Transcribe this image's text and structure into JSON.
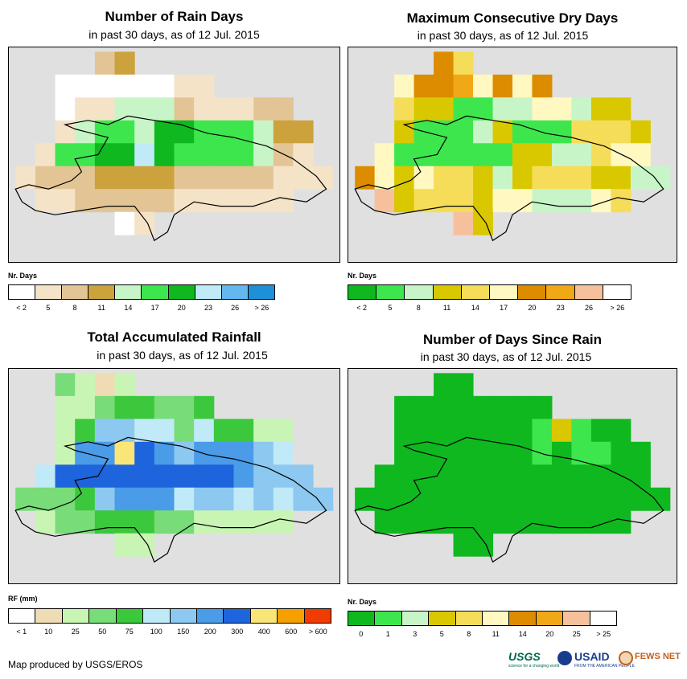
{
  "colors": {
    "map_bg": "#e0e0e0",
    "outline": "#000000"
  },
  "chart_data": [
    {
      "type": "heatmap",
      "title": "Number of Rain Days",
      "subtitle": "in past 30 days, as of 12 Jul. 2015",
      "legend_title": "Nr. Days",
      "legend_colors": [
        "#ffffff",
        "#f5e3c8",
        "#e3c595",
        "#cca23d",
        "#c8f5c8",
        "#3ee64e",
        "#0fb81e",
        "#c0eaf8",
        "#63b8f0",
        "#1e90d8"
      ],
      "legend_ticks": [
        "< 2",
        "5",
        "8",
        "11",
        "14",
        "17",
        "20",
        "23",
        "26",
        "> 26"
      ],
      "grid_cols": 16,
      "grid_rows": 9,
      "cells": [
        [
          null,
          null,
          null,
          null,
          2,
          3,
          null,
          null,
          null,
          null,
          null,
          null,
          null,
          null,
          null,
          null
        ],
        [
          null,
          null,
          0,
          0,
          0,
          0,
          0,
          0,
          1,
          1,
          null,
          null,
          null,
          null,
          null,
          null
        ],
        [
          null,
          null,
          0,
          1,
          1,
          4,
          4,
          4,
          2,
          1,
          1,
          1,
          2,
          2,
          null,
          null
        ],
        [
          null,
          null,
          1,
          4,
          5,
          5,
          4,
          6,
          6,
          5,
          5,
          5,
          4,
          3,
          3,
          null
        ],
        [
          null,
          1,
          5,
          5,
          6,
          6,
          7,
          6,
          5,
          5,
          5,
          5,
          4,
          2,
          1,
          null
        ],
        [
          1,
          2,
          2,
          2,
          3,
          3,
          3,
          3,
          2,
          2,
          2,
          2,
          2,
          1,
          1,
          1
        ],
        [
          null,
          1,
          1,
          2,
          2,
          2,
          2,
          2,
          1,
          1,
          1,
          1,
          1,
          1,
          null,
          null
        ],
        [
          null,
          null,
          null,
          null,
          null,
          0,
          1,
          null,
          null,
          null,
          null,
          null,
          null,
          null,
          null,
          null
        ],
        [
          null,
          null,
          null,
          null,
          null,
          null,
          null,
          null,
          null,
          null,
          null,
          null,
          null,
          null,
          null,
          null
        ]
      ]
    },
    {
      "type": "heatmap",
      "title": "Maximum Consecutive Dry Days",
      "subtitle": "in past 30 days, as of 12 Jul. 2015",
      "legend_title": "Nr. Days",
      "legend_colors": [
        "#0fb81e",
        "#3ee64e",
        "#c8f5c8",
        "#d9c800",
        "#f5dd5a",
        "#fff8c0",
        "#dd8c00",
        "#f0a816",
        "#f7c09c",
        "#ffffff"
      ],
      "legend_ticks": [
        "< 2",
        "5",
        "8",
        "11",
        "14",
        "17",
        "20",
        "23",
        "26",
        "> 26"
      ],
      "grid_cols": 16,
      "grid_rows": 9,
      "cells": [
        [
          null,
          null,
          null,
          null,
          6,
          4,
          null,
          null,
          null,
          null,
          null,
          null,
          null,
          null,
          null,
          null
        ],
        [
          null,
          null,
          5,
          6,
          6,
          7,
          5,
          6,
          5,
          6,
          null,
          null,
          null,
          null,
          null,
          null
        ],
        [
          null,
          null,
          4,
          3,
          3,
          1,
          1,
          2,
          2,
          5,
          5,
          2,
          3,
          3,
          null,
          null
        ],
        [
          null,
          null,
          3,
          1,
          1,
          1,
          2,
          3,
          1,
          1,
          1,
          4,
          4,
          4,
          3,
          null
        ],
        [
          null,
          5,
          1,
          1,
          1,
          1,
          1,
          1,
          3,
          3,
          2,
          2,
          4,
          5,
          5,
          null
        ],
        [
          6,
          5,
          3,
          5,
          4,
          4,
          3,
          2,
          3,
          4,
          4,
          4,
          3,
          3,
          2,
          2
        ],
        [
          null,
          8,
          3,
          4,
          4,
          4,
          3,
          5,
          5,
          2,
          2,
          2,
          5,
          4,
          null,
          null
        ],
        [
          null,
          null,
          null,
          null,
          null,
          8,
          3,
          null,
          null,
          null,
          null,
          null,
          null,
          null,
          null,
          null
        ],
        [
          null,
          null,
          null,
          null,
          null,
          null,
          null,
          null,
          null,
          null,
          null,
          null,
          null,
          null,
          null,
          null
        ]
      ]
    },
    {
      "type": "heatmap",
      "title": "Total Accumulated Rainfall",
      "subtitle": "in past 30 days, as of 12 Jul. 2015",
      "legend_title": "RF (mm)",
      "legend_colors": [
        "#ffffff",
        "#f0dcb4",
        "#c8f5b4",
        "#78dc78",
        "#3cc83c",
        "#c0eaf8",
        "#8cc8f0",
        "#4a9be8",
        "#1e64dc",
        "#fae678",
        "#f5a000",
        "#f03c00"
      ],
      "legend_ticks": [
        "< 1",
        "10",
        "25",
        "50",
        "75",
        "100",
        "150",
        "200",
        "300",
        "400",
        "600",
        "> 600"
      ],
      "grid_cols": 16,
      "grid_rows": 9,
      "cells": [
        [
          null,
          null,
          3,
          2,
          1,
          2,
          null,
          null,
          null,
          null,
          null,
          null,
          null,
          null,
          null,
          null
        ],
        [
          null,
          null,
          2,
          2,
          3,
          4,
          4,
          3,
          3,
          4,
          null,
          null,
          null,
          null,
          null,
          null
        ],
        [
          null,
          null,
          2,
          4,
          6,
          6,
          5,
          5,
          3,
          5,
          4,
          4,
          2,
          2,
          null,
          null
        ],
        [
          null,
          null,
          2,
          7,
          7,
          9,
          8,
          7,
          6,
          7,
          7,
          7,
          6,
          5,
          null,
          null
        ],
        [
          null,
          5,
          8,
          8,
          8,
          8,
          8,
          8,
          8,
          8,
          8,
          7,
          6,
          6,
          6,
          null
        ],
        [
          3,
          3,
          3,
          4,
          6,
          7,
          7,
          7,
          5,
          6,
          6,
          5,
          6,
          5,
          6,
          6
        ],
        [
          null,
          2,
          3,
          3,
          4,
          4,
          4,
          3,
          3,
          2,
          2,
          2,
          2,
          2,
          null,
          null
        ],
        [
          null,
          null,
          null,
          null,
          null,
          2,
          2,
          null,
          null,
          null,
          null,
          null,
          null,
          null,
          null,
          null
        ],
        [
          null,
          null,
          null,
          null,
          null,
          null,
          null,
          null,
          null,
          null,
          null,
          null,
          null,
          null,
          null,
          null
        ]
      ]
    },
    {
      "type": "heatmap",
      "title": "Number of Days Since Rain",
      "subtitle": "in past 30 days, as of 12 Jul. 2015",
      "legend_title": "Nr. Days",
      "legend_colors": [
        "#0fb81e",
        "#3ee64e",
        "#c8f5c8",
        "#d9c800",
        "#f5dd5a",
        "#fff8c0",
        "#dd8c00",
        "#f0a816",
        "#f7c09c",
        "#ffffff"
      ],
      "legend_ticks": [
        "0",
        "1",
        "3",
        "5",
        "8",
        "11",
        "14",
        "20",
        "25",
        "> 25"
      ],
      "grid_cols": 16,
      "grid_rows": 9,
      "cells": [
        [
          null,
          null,
          null,
          null,
          0,
          0,
          null,
          null,
          null,
          null,
          null,
          null,
          null,
          null,
          null,
          null
        ],
        [
          null,
          null,
          0,
          0,
          0,
          0,
          0,
          0,
          0,
          0,
          null,
          null,
          null,
          null,
          null,
          null
        ],
        [
          null,
          null,
          0,
          0,
          0,
          0,
          0,
          0,
          0,
          1,
          3,
          1,
          0,
          0,
          null,
          null
        ],
        [
          null,
          null,
          0,
          0,
          0,
          0,
          0,
          0,
          0,
          1,
          0,
          1,
          1,
          0,
          0,
          null
        ],
        [
          null,
          0,
          0,
          0,
          0,
          0,
          0,
          0,
          0,
          0,
          0,
          0,
          0,
          0,
          0,
          null
        ],
        [
          0,
          0,
          0,
          0,
          0,
          0,
          0,
          0,
          0,
          0,
          0,
          0,
          0,
          0,
          0,
          0
        ],
        [
          null,
          0,
          0,
          0,
          0,
          0,
          0,
          0,
          0,
          0,
          0,
          0,
          0,
          0,
          null,
          null
        ],
        [
          null,
          null,
          null,
          null,
          null,
          0,
          0,
          null,
          null,
          null,
          null,
          null,
          null,
          null,
          null,
          null
        ],
        [
          null,
          null,
          null,
          null,
          null,
          null,
          null,
          null,
          null,
          null,
          null,
          null,
          null,
          null,
          null,
          null
        ]
      ]
    }
  ],
  "footer": {
    "credit": "Map produced by USGS/EROS",
    "logo_usgs": "USGS",
    "logo_usgs_tag": "science for a changing world",
    "logo_usaid": "USAID",
    "logo_usaid_tag": "FROM THE AMERICAN PEOPLE",
    "logo_fews": "FEWS NET"
  }
}
